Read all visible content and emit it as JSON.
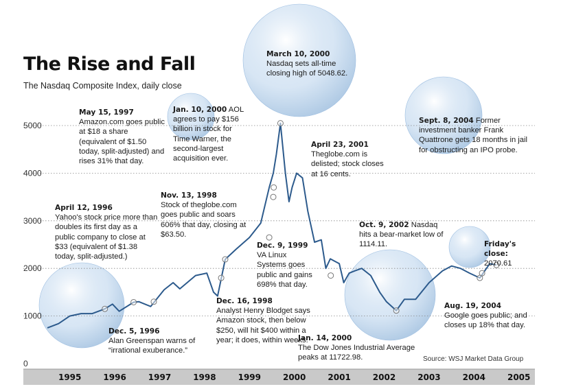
{
  "chart_data": {
    "type": "line",
    "title": "The Rise and Fall",
    "subtitle": "The Nasdaq Composite Index, daily close",
    "source": "Source: WSJ Market Data Group",
    "ylim": [
      0,
      5500
    ],
    "yticks": [
      "0",
      "1000",
      "2000",
      "3000",
      "4000",
      "5000"
    ],
    "ytick_values": [
      0,
      1000,
      2000,
      3000,
      4000,
      5000
    ],
    "xticks": [
      "1995",
      "1996",
      "1997",
      "1998",
      "1999",
      "2000",
      "2001",
      "2002",
      "2003",
      "2004",
      "2005"
    ],
    "grid": "dotted horizontal",
    "colors": {
      "line": "#2c5a8c",
      "bubble": "#b8d2ec",
      "axis_band": "#c9c9c9"
    },
    "series": [
      {
        "x": [
          1995.0,
          1995.25,
          1995.5,
          1995.75,
          1996.0,
          1996.28,
          1996.45,
          1996.6,
          1996.92,
          1997.04,
          1997.3,
          1997.6,
          1997.8,
          1997.95,
          1998.3,
          1998.55,
          1998.7,
          1998.79,
          1998.96,
          1999.2,
          1999.5,
          1999.75,
          1999.94,
          2000.03,
          2000.1,
          2000.19,
          2000.3,
          2000.38,
          2000.45,
          2000.55,
          2000.68,
          2000.8,
          2000.95,
          2001.1,
          2001.2,
          2001.3,
          2001.5,
          2001.6,
          2001.72,
          2001.85,
          2002.0,
          2002.2,
          2002.4,
          2002.55,
          2002.77,
          2002.95,
          2003.2,
          2003.5,
          2003.8,
          2004.0,
          2004.2,
          2004.4,
          2004.63,
          2004.85,
          2005.0
        ],
        "y": [
          750,
          840,
          1000,
          1050,
          1050,
          1150,
          1250,
          1100,
          1290,
          1300,
          1200,
          1550,
          1700,
          1570,
          1850,
          1900,
          1500,
          1420,
          2190,
          2400,
          2650,
          2950,
          3700,
          4000,
          4400,
          5048.62,
          4000,
          3400,
          3700,
          4000,
          3900,
          3200,
          2550,
          2600,
          2000,
          2200,
          2100,
          1700,
          1900,
          1950,
          2000,
          1850,
          1500,
          1300,
          1114.11,
          1350,
          1350,
          1700,
          1950,
          2050,
          2000,
          1900,
          1800,
          2100,
          2070.61
        ]
      }
    ],
    "markers": [
      {
        "date": "April 12, 1996",
        "x": 1996.28,
        "y": 1150
      },
      {
        "date": "Dec. 5, 1996",
        "x": 1996.92,
        "y": 1290
      },
      {
        "date": "May 15, 1997",
        "x": 1997.37,
        "y": 1300
      },
      {
        "date": "Nov. 13, 1998",
        "x": 1998.87,
        "y": 1800
      },
      {
        "date": "Dec. 16, 1998",
        "x": 1998.96,
        "y": 2190
      },
      {
        "date": "Jan. 10, 2000",
        "x": 2000.03,
        "y": 3500
      },
      {
        "date": "Dec. 9, 1999",
        "x": 1999.94,
        "y": 2650
      },
      {
        "date": "Jan. 14, 2000",
        "x": 2000.04,
        "y": 3700
      },
      {
        "date": "March 10, 2000",
        "x": 2000.19,
        "y": 5048.62
      },
      {
        "date": "April 23, 2001",
        "x": 2001.31,
        "y": 1850
      },
      {
        "date": "Oct. 9, 2002",
        "x": 2002.77,
        "y": 1114.11
      },
      {
        "date": "Aug. 19, 2004",
        "x": 2004.63,
        "y": 1800
      },
      {
        "date": "Sept. 8, 2004",
        "x": 2004.68,
        "y": 1900
      },
      {
        "date": "Friday's close",
        "x": 2005.0,
        "y": 2070.61
      }
    ],
    "annotations": [
      {
        "id": "mar2000",
        "date": "March 10, 2000",
        "text": "Nasdaq sets all-time closing high of 5048.62."
      },
      {
        "id": "may1997",
        "date": "May 15, 1997",
        "text": "Amazon.com goes public at $18 a share (equivalent of $1.50 today, split-adjusted) and rises 31% that day."
      },
      {
        "id": "jan2000aol",
        "date": "Jan. 10, 2000",
        "text": "AOL agrees to pay $156 billion in stock for Time Warner, the second-largest acquisition ever."
      },
      {
        "id": "sep2004",
        "date": "Sept. 8, 2004",
        "text": "Former investment banker Frank Quattrone gets 18 months in jail for obstructing an IPO probe."
      },
      {
        "id": "apr2001",
        "date": "April 23, 2001",
        "text": "Theglobe.com is delisted; stock closes at 16 cents."
      },
      {
        "id": "nov1998",
        "date": "Nov. 13, 1998",
        "text": "Stock of theglobe.com goes public and soars 606% that day, closing at $63.50."
      },
      {
        "id": "apr1996",
        "date": "April 12, 1996",
        "text": "Yahoo's stock price more than doubles its first day as a public company to close at $33 (equivalent of $1.38 today, split-adjusted.)"
      },
      {
        "id": "oct2002",
        "date": "Oct. 9, 2002",
        "text": "Nasdaq hits a bear-market low of 1114.11."
      },
      {
        "id": "friday",
        "date": "Friday's close:",
        "text": "2070.61"
      },
      {
        "id": "dec1999",
        "date": "Dec. 9, 1999",
        "text": "VA Linux Systems goes public and gains 698% that day."
      },
      {
        "id": "dec1998",
        "date": "Dec. 16, 1998",
        "text": "Analyst Henry Blodget says Amazon stock, then below $250, will hit $400 within a year; it does, within weeks."
      },
      {
        "id": "dec1996",
        "date": "Dec. 5, 1996",
        "text": "Alan Greenspan warns of “irrational exuberance.”"
      },
      {
        "id": "jan2000dow",
        "date": "Jan. 14, 2000",
        "text": "The Dow Jones Industrial Average peaks at 11722.98."
      },
      {
        "id": "aug2004",
        "date": "Aug. 19, 2004",
        "text": "Google goes public; and closes up 18% that day."
      }
    ]
  }
}
